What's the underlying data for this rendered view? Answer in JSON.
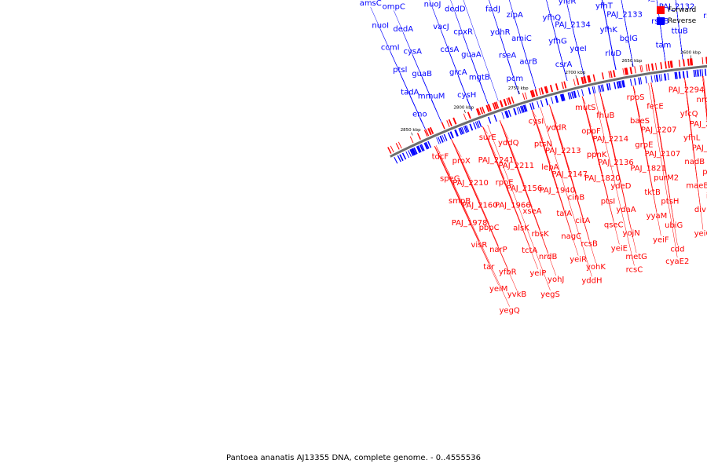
{
  "caption": "Pantoea ananatis AJ13355 DNA, complete genome. - 0..4555536",
  "legend": {
    "forward_label": "Forward",
    "reverse_label": "Reverse",
    "forward_color": "#ff0000",
    "reverse_color": "#0000ff"
  },
  "colors": {
    "backbone": "#6e6e6e"
  },
  "ticks": [
    "2850 kbp",
    "2800 kbp",
    "2750 kbp",
    "2700 kbp",
    "2650 kbp",
    "2600 kbp",
    "2550 kbp",
    "2500 kbp",
    "2450 kbp",
    "2400 kbp",
    "2350 kbp",
    "2300 kbp",
    "2250 kbp",
    "2200 kbp"
  ],
  "reverse_genes": [
    "eno",
    "cysH",
    "pcm",
    "csrA",
    "rluD",
    "tam",
    "ffh",
    "yfiH",
    "recX",
    "aroF",
    "yphC",
    "tyrA",
    "kgtP",
    "clpB",
    "yfiF",
    "mmuP",
    "yahK",
    "mmuM",
    "mgtB",
    "acrB",
    "yqeI",
    "bglG",
    "ttuB",
    "yagI",
    "PAJ_2236",
    "PAJ_2235",
    "ycaK",
    "PAJ_2232",
    "tp53I3",
    "cII",
    "acpS",
    "yfjG",
    "yfhB",
    "yfjF",
    "tadA",
    "grcA",
    "rseA",
    "yfhG",
    "yfhK",
    "rseB",
    "rseC",
    "era",
    "rnc",
    "glnB",
    "hcaT",
    "iscS",
    "hisS",
    "gcvB",
    "glyA1",
    "lepB",
    "sseB",
    "guaB",
    "guaA",
    "amiC",
    "PAJ_2134",
    "PAJ_2133",
    "PAJ_2132",
    "PAJ_2128",
    "alpA",
    "yfgM",
    "yfgL",
    "engA",
    "qumA",
    "PAJ_2129",
    "pstC",
    "pstA1",
    "upp",
    "purM",
    "ptsl",
    "cdsA",
    "ydhR",
    "yfhQ",
    "yfhT",
    "PAJ_2062",
    "yfeZ",
    "fbpC",
    "PAJ_2099",
    "perM",
    "dapA",
    "nlpB",
    "purC",
    "ypfI",
    "cysT",
    "cysW",
    "yfeY",
    "cysA",
    "cpxR",
    "zipA",
    "yfeR",
    "mntH",
    "mdmC",
    "ipdC",
    "glk",
    "rimL",
    "yaiT",
    "ybgG",
    "ccmC",
    "ccmD",
    "ccmE",
    "ccmF",
    "dsbE",
    "ccmH",
    "ccmI",
    "vacJ",
    "fadJ",
    "fadI",
    "aroC",
    "mepA",
    "yfcN",
    "yfcB",
    "prsH",
    "papC",
    "smfA",
    "yfcS",
    "mrfE",
    "mrfA",
    "mrfB",
    "usg",
    "PAJ_1939",
    "dedA",
    "dedD",
    "cvpA",
    "purF",
    "ubiX",
    "argT",
    "hisQ",
    "hisM",
    "hisP",
    "yfbV",
    "nuoA",
    "nuoB",
    "nuoC",
    "nuoE",
    "nuoF",
    "nuoG",
    "nuoH",
    "nuoI",
    "nuoJ",
    "nuoK",
    "nuoL",
    "nuoM",
    "nuoN",
    "folC",
    "accD",
    "yfbO",
    "yfbQ",
    "ybfA",
    "lrhA",
    "PAJ_1857",
    "dcuA",
    "fruK",
    "fruA",
    "cyaE",
    "ompC",
    "pupA",
    "yddA",
    "PAJ_1876",
    "rsuA",
    "folE",
    "btuC",
    "fepC",
    "galS",
    "mglA",
    "mglC",
    "yeiE",
    "asmA",
    "amsG",
    "amsH",
    "amsI",
    "amsA",
    "amsC",
    "amsB",
    "wcaA",
    "amsD",
    "amsF",
    "amsJ",
    "amsK",
    "galF",
    "galE",
    "apbE",
    "yojI",
    "abfA",
    "cyaB",
    "lktD",
    "alkB",
    "tixA",
    "pmbA",
    "tidB",
    "yeiW",
    "yeiB",
    "mgIB",
    "thiM",
    "thiD",
    "udk"
  ],
  "forward_genes": [
    "tdcF",
    "surE",
    "cysI",
    "mutS",
    "rpoS",
    "PAJ_2294",
    "recA",
    "PAJ_2286",
    "luxS",
    "yfiO",
    "yfiA",
    "pheA",
    "yfiP",
    "yfiQ",
    "pssA",
    "proW",
    "proX",
    "yddQ",
    "yddR",
    "fhuB",
    "fecE",
    "nrdF",
    "baeR",
    "rraA",
    "mhpC",
    "fatB",
    "fatD",
    "fatC",
    "serA",
    "emrA",
    "emrB",
    "azlB",
    "speG",
    "PAJ_2241",
    "ptsN",
    "oppF",
    "baeS",
    "yfcQ",
    "yfcC",
    "nrdE",
    "nrdI",
    "nrdH",
    "ttuB2",
    "PAJ_2237",
    "PAJ_2239",
    "PAJ_2238",
    "PAJ_2247",
    "PAJ_2229",
    "PAJ_2210",
    "PAJ_2211",
    "PAJ_2213",
    "PAJ_2214",
    "PAJ_2207",
    "PAJ_2203",
    "PAJ_2205",
    "PAJ_2212",
    "PAJ_2208",
    "PAJ_2204",
    "PAJ_2173",
    "PAJ_2209",
    "cirA",
    "fecE2",
    "rimL2",
    "smpA",
    "smpB",
    "rpoE",
    "lepA",
    "ppnK",
    "grpE",
    "yfhL",
    "yfhM",
    "ispG",
    "yfhC",
    "mgtE",
    "tehB",
    "prt1",
    "PAJ_2124",
    "PAJ_2125",
    "PAJ_2163",
    "PAJ_2161",
    "PAJ_2160",
    "PAJ_2156",
    "PAJ_2147",
    "PAJ_2136",
    "PAJ_2107",
    "PAJ_2093",
    "PAJ_2077",
    "PAJ_2068",
    "PAJ_2036",
    "PAJ_2020",
    "PAJ_2016",
    "PAJ_2017",
    "PAJ_2011",
    "PAJ_2005",
    "PAJ_1998",
    "PAJ_1983",
    "PAJ_1978",
    "PAJ_1966",
    "PAJ_1940",
    "PAJ_1820",
    "PAJ_1821",
    "nadB",
    "sseA",
    "hmp",
    "recO",
    "pdxJ",
    "ndk",
    "csiE",
    "yfgB",
    "yfhB",
    "suhB",
    "pepB",
    "pbpC",
    "xseA",
    "cinB",
    "ydeD",
    "purM2",
    "purN",
    "trbJ",
    "trbL",
    "ppk",
    "ppx",
    "ugpE",
    "ugpC",
    "yfhY",
    "yfgC",
    "gcvR",
    "bcp",
    "visR",
    "alsK",
    "taIA",
    "ptsI",
    "tktB",
    "maeB",
    "acrD",
    "ampH",
    "rbsA",
    "dapE",
    "hemF",
    "cysK",
    "yhF",
    "flxA",
    "rbsC",
    "narQ",
    "narP",
    "rbsK",
    "citA",
    "ydaA",
    "ptsH",
    "insK",
    "ypdA",
    "ypdB",
    "ypeC",
    "emrK",
    "yehF",
    "cysZ",
    "yghZ",
    "smfA",
    "ccmB",
    "fadL",
    "tar",
    "tctA",
    "nagC",
    "qseC",
    "yyaM",
    "div",
    "pdxB",
    "yfcH",
    "ydeW",
    "puuE",
    "potA",
    "potB",
    "potH",
    "potC",
    "ackA",
    "pta",
    "yfbR",
    "nrdB",
    "rcsB",
    "yojN",
    "ubiG",
    "nrdA",
    "yfaE",
    "mdoD",
    "ybdG",
    "fecI",
    "fecR",
    "tonB",
    "exbB",
    "exbD",
    "yeiJ",
    "yeiL",
    "yeiM",
    "yeiP",
    "yeiR",
    "yeiE",
    "yeiF",
    "yeiG",
    "rplY",
    "yvaJ",
    "yvaL",
    "adhC",
    "nfo",
    "yjeL",
    "veiN",
    "veiQ",
    "yeiK",
    "ydfI",
    "yvkB",
    "yohJ",
    "yohK",
    "metG",
    "cdd",
    "sfcA",
    "sanA",
    "yegH",
    "yegE",
    "yegD",
    "mdtA",
    "mdtB",
    "mdtC",
    "yegB",
    "baeS2",
    "baeR2",
    "yegQ",
    "yegS",
    "yddH",
    "rcsC",
    "cyaE2",
    "lysP",
    "ahpC",
    "ahpF",
    "mrp",
    "yeiQ",
    "fruB",
    "bcr",
    "ydpA",
    "ndpA",
    "yeiC"
  ]
}
